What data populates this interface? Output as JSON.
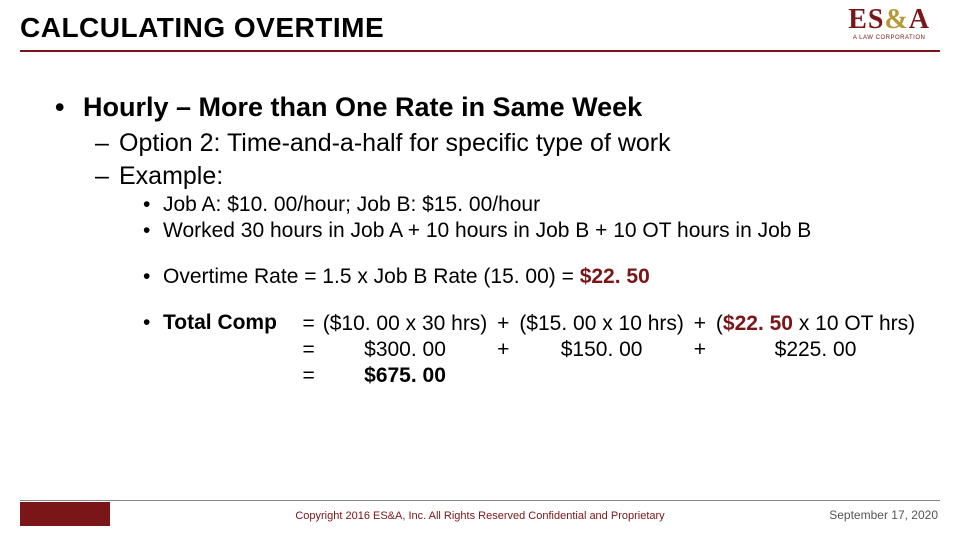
{
  "title": "CALCULATING OVERTIME",
  "logo": {
    "left": "ES",
    "amp": "&",
    "right": "A",
    "sub": "A LAW CORPORATION"
  },
  "accent_color": "#7a1618",
  "bullets": {
    "l1": "Hourly – More than One Rate in Same Week",
    "l2a": "Option 2:  Time-and-a-half for specific type of work",
    "l2b": "Example:",
    "l3a": "Job A:  $10. 00/hour; Job B:  $15. 00/hour",
    "l3b": "Worked 30 hours in Job A + 10 hours in Job B + 10 OT hours in Job B",
    "l3c_pre": "Overtime Rate = 1.5 x Job B Rate (15. 00) = ",
    "l3c_val": "$22. 50",
    "l3d_label": "Total Comp"
  },
  "comp": {
    "r1c1": "($10. 00 x 30 hrs)",
    "r1c2": "($15. 00 x 10 hrs)",
    "r1c3a": "(",
    "r1c3_accent": "$22. 50",
    "r1c3b": " x 10 OT hrs)",
    "r2c1": "$300. 00",
    "r2c2": "$150. 00",
    "r2c3": "$225. 00",
    "r3": "$675. 00",
    "eq": "=",
    "plus": "+"
  },
  "footer": {
    "copyright": "Copyright 2016 ES&A, Inc. All Rights Reserved Confidential and Proprietary",
    "date": "September 17, 2020"
  }
}
